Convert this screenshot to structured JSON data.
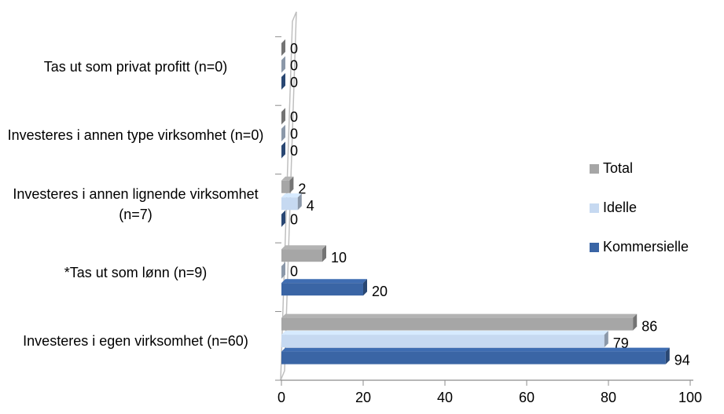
{
  "chart_data": {
    "type": "bar",
    "categories": [
      "Investeres i egen virksomhet (n=60)",
      "*Tas ut som lønn (n=9)",
      "Investeres i annen lignende virksomhet (n=7)",
      "Investeres i annen type virksomhet (n=0)",
      "Tas ut som privat profitt (n=0)"
    ],
    "series": [
      {
        "name": "Total",
        "color": "#a6a6a6",
        "values": [
          86,
          10,
          2,
          0,
          0
        ]
      },
      {
        "name": "Idelle",
        "color": "#c6d9f1",
        "values": [
          79,
          0,
          4,
          0,
          0
        ]
      },
      {
        "name": "Kommersielle",
        "color": "#3a65a5",
        "values": [
          94,
          20,
          0,
          0,
          0
        ]
      }
    ],
    "xlim": [
      0,
      100
    ],
    "xticks": [
      0,
      20,
      40,
      60,
      80,
      100
    ],
    "legend": "right"
  }
}
